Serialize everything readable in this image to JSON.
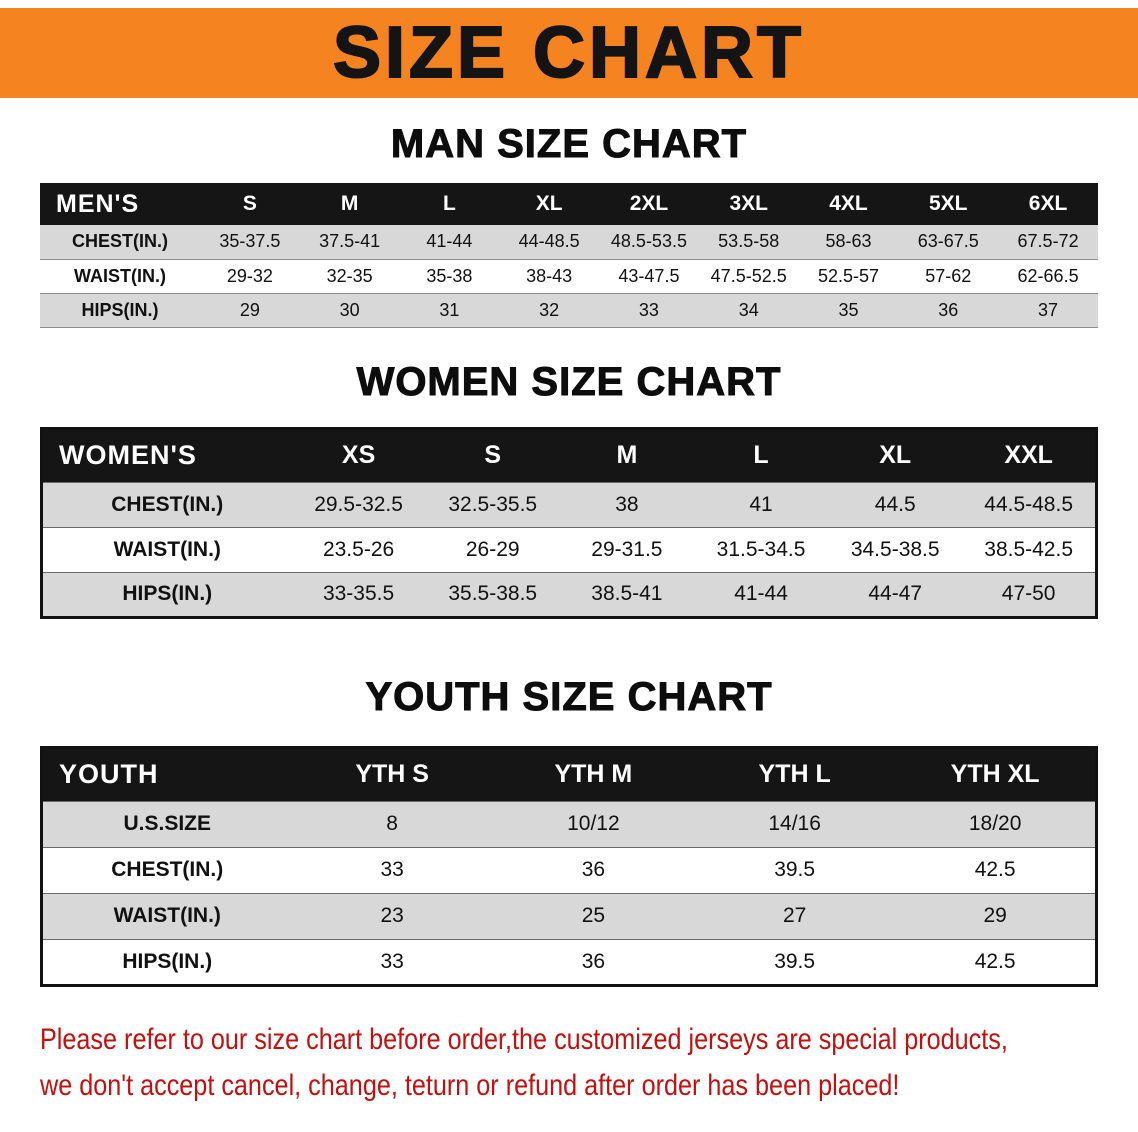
{
  "banner": {
    "title": "SIZE CHART"
  },
  "chart_data": [
    {
      "type": "table",
      "title": "MAN SIZE CHART",
      "header_label": "MEN'S",
      "columns": [
        "S",
        "M",
        "L",
        "XL",
        "2XL",
        "3XL",
        "4XL",
        "5XL",
        "6XL"
      ],
      "rows": [
        {
          "label": "CHEST(IN.)",
          "values": [
            "35-37.5",
            "37.5-41",
            "41-44",
            "44-48.5",
            "48.5-53.5",
            "53.5-58",
            "58-63",
            "63-67.5",
            "67.5-72"
          ]
        },
        {
          "label": "WAIST(IN.)",
          "values": [
            "29-32",
            "32-35",
            "35-38",
            "38-43",
            "43-47.5",
            "47.5-52.5",
            "52.5-57",
            "57-62",
            "62-66.5"
          ]
        },
        {
          "label": "HIPS(IN.)",
          "values": [
            "29",
            "30",
            "31",
            "32",
            "33",
            "34",
            "35",
            "36",
            "37"
          ]
        }
      ]
    },
    {
      "type": "table",
      "title": "WOMEN SIZE CHART",
      "header_label": "WOMEN'S",
      "columns": [
        "XS",
        "S",
        "M",
        "L",
        "XL",
        "XXL"
      ],
      "rows": [
        {
          "label": "CHEST(IN.)",
          "values": [
            "29.5-32.5",
            "32.5-35.5",
            "38",
            "41",
            "44.5",
            "44.5-48.5"
          ]
        },
        {
          "label": "WAIST(IN.)",
          "values": [
            "23.5-26",
            "26-29",
            "29-31.5",
            "31.5-34.5",
            "34.5-38.5",
            "38.5-42.5"
          ]
        },
        {
          "label": "HIPS(IN.)",
          "values": [
            "33-35.5",
            "35.5-38.5",
            "38.5-41",
            "41-44",
            "44-47",
            "47-50"
          ]
        }
      ]
    },
    {
      "type": "table",
      "title": "YOUTH SIZE CHART",
      "header_label": "YOUTH",
      "columns": [
        "YTH S",
        "YTH M",
        "YTH L",
        "YTH XL"
      ],
      "rows": [
        {
          "label": "U.S.SIZE",
          "values": [
            "8",
            "10/12",
            "14/16",
            "18/20"
          ]
        },
        {
          "label": "CHEST(IN.)",
          "values": [
            "33",
            "36",
            "39.5",
            "42.5"
          ]
        },
        {
          "label": "WAIST(IN.)",
          "values": [
            "23",
            "25",
            "27",
            "29"
          ]
        },
        {
          "label": "HIPS(IN.)",
          "values": [
            "33",
            "36",
            "39.5",
            "42.5"
          ]
        }
      ]
    }
  ],
  "footer": {
    "line1": "Please refer to our size chart before order,the customized jerseys are special products,",
    "line2": "we don't accept cancel, change, teturn or refund after order has been placed!"
  },
  "colors": {
    "banner_orange": "#F5831F",
    "table_header_black": "#151515",
    "row_gray": "#D8D8D8",
    "note_red": "#C21010"
  }
}
